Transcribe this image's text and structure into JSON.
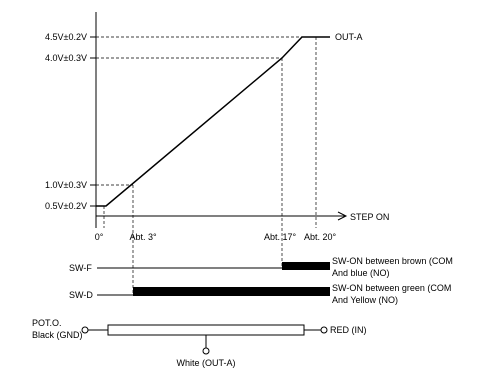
{
  "y_levels": {
    "v45": "4.5V±0.2V",
    "v40": "4.0V±0.3V",
    "v10": "1.0V±0.3V",
    "v05": "0.5V±0.2V"
  },
  "x_labels": {
    "zero": "0°",
    "abt3": "Abt. 3°",
    "abt17": "Abt. 17°",
    "abt20": "Abt. 20°"
  },
  "curve_label": "OUT-A",
  "axis_label": "STEP ON",
  "switches": {
    "swf": {
      "label": "SW-F",
      "desc_line1": "SW-ON between brown (COM",
      "desc_line2": "And blue (NO)"
    },
    "swd": {
      "label": "SW-D",
      "desc_line1": "SW-ON between green (COM",
      "desc_line2": "And Yellow (NO)"
    }
  },
  "pot": {
    "label_line1": "POT.O.",
    "label_line2": "Black (GND)",
    "right_label": "RED (IN)",
    "wiper_label": "White (OUT-A)"
  }
}
